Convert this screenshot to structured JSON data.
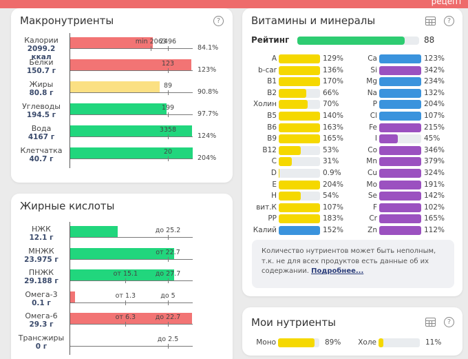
{
  "topbar": {
    "recipe_label": "рецепт",
    "color": "#ee6b6b"
  },
  "colors": {
    "red": "#f27474",
    "yellow": "#fbe083",
    "green": "#21d67d",
    "vit_yellow": "#f5d800",
    "blue": "#3a93dd",
    "purple": "#9b51c0",
    "rating_green": "#2ecc71",
    "track": "#e9ecef"
  },
  "macros": {
    "title": "Макронутриенты",
    "help_icon": "help-circle-icon",
    "rows": [
      {
        "name": "Калории",
        "value": "2099.2",
        "unit": "ккал",
        "fill_pct": 84.1,
        "color": "red",
        "ticks": [
          {
            "label": "min 2063",
            "pct": 82.7
          },
          {
            "label": "2496",
            "pct": 100
          }
        ],
        "pct_label": "84.1%"
      },
      {
        "name": "Белки",
        "value": "150.7 г",
        "fill_pct": 123,
        "color": "red",
        "ticks": [
          {
            "label": "123",
            "pct": 100
          }
        ],
        "pct_label": "123%"
      },
      {
        "name": "Жиры",
        "value": "80.8 г",
        "fill_pct": 90.8,
        "color": "yellow",
        "ticks": [
          {
            "label": "89",
            "pct": 100
          }
        ],
        "pct_label": "90.8%"
      },
      {
        "name": "Углеводы",
        "value": "194.5 г",
        "fill_pct": 97.7,
        "color": "green",
        "ticks": [
          {
            "label": "199",
            "pct": 100
          }
        ],
        "pct_label": "97.7%"
      },
      {
        "name": "Вода",
        "value": "4167 г",
        "fill_pct": 124,
        "color": "green",
        "ticks": [
          {
            "label": "3358",
            "pct": 100
          }
        ],
        "pct_label": "124%"
      },
      {
        "name": "Клетчатка",
        "value": "40.7 г",
        "fill_pct": 204,
        "color": "green",
        "ticks": [
          {
            "label": "20",
            "pct": 100
          }
        ],
        "pct_label": "204%"
      }
    ]
  },
  "fats": {
    "title": "Жирные кислоты",
    "rows": [
      {
        "name": "НЖК",
        "value": "12.1 г",
        "fill_pct": 48,
        "color": "green",
        "ticks": [
          {
            "label": "до 25.2",
            "pct": 100
          }
        ]
      },
      {
        "name": "МНЖК",
        "value": "23.975 г",
        "fill_pct": 105.6,
        "color": "green",
        "ticks": [
          {
            "label": "от 22.7",
            "pct": 100
          }
        ]
      },
      {
        "name": "ПНЖК",
        "value": "29.188 г",
        "fill_pct": 105.4,
        "color": "green",
        "ticks": [
          {
            "label": "от 15.1",
            "pct": 56.9
          },
          {
            "label": "до 27.7",
            "pct": 100
          }
        ]
      },
      {
        "name": "Омега-3",
        "value": "0.1 г",
        "fill_pct": 5,
        "color": "red",
        "ticks": [
          {
            "label": "от 1.3",
            "pct": 56.9
          },
          {
            "label": "до 5",
            "pct": 100
          }
        ]
      },
      {
        "name": "Омега-6",
        "value": "29.3 г",
        "fill_pct": 124,
        "color": "red",
        "ticks": [
          {
            "label": "от 6.3",
            "pct": 56.9
          },
          {
            "label": "до 22.7",
            "pct": 100
          }
        ]
      },
      {
        "name": "Трансжиры",
        "value": "0 г",
        "fill_pct": 0,
        "color": "green",
        "ticks": [
          {
            "label": "до 2.5",
            "pct": 100
          }
        ]
      }
    ]
  },
  "vitamins": {
    "title": "Витамины и минералы",
    "table_icon": "table-icon",
    "help_icon": "help-circle-icon",
    "rating_label": "Рейтинг",
    "rating_value": "88",
    "rating_pct": 88,
    "left": [
      {
        "name": "A",
        "pct": 129,
        "label": "129%",
        "color": "vit_yellow"
      },
      {
        "name": "b-car",
        "pct": 136,
        "label": "136%",
        "color": "vit_yellow"
      },
      {
        "name": "B1",
        "pct": 170,
        "label": "170%",
        "color": "vit_yellow"
      },
      {
        "name": "B2",
        "pct": 66,
        "label": "66%",
        "color": "vit_yellow"
      },
      {
        "name": "Холин",
        "pct": 70,
        "label": "70%",
        "color": "vit_yellow"
      },
      {
        "name": "B5",
        "pct": 140,
        "label": "140%",
        "color": "vit_yellow"
      },
      {
        "name": "B6",
        "pct": 163,
        "label": "163%",
        "color": "vit_yellow"
      },
      {
        "name": "B9",
        "pct": 165,
        "label": "165%",
        "color": "vit_yellow"
      },
      {
        "name": "B12",
        "pct": 53,
        "label": "53%",
        "color": "vit_yellow"
      },
      {
        "name": "C",
        "pct": 31,
        "label": "31%",
        "color": "vit_yellow"
      },
      {
        "name": "D",
        "pct": 0.9,
        "label": "0.9%",
        "color": "vit_yellow"
      },
      {
        "name": "E",
        "pct": 204,
        "label": "204%",
        "color": "vit_yellow"
      },
      {
        "name": "H",
        "pct": 54,
        "label": "54%",
        "color": "vit_yellow"
      },
      {
        "name": "вит.К",
        "pct": 107,
        "label": "107%",
        "color": "vit_yellow"
      },
      {
        "name": "PP",
        "pct": 183,
        "label": "183%",
        "color": "vit_yellow"
      },
      {
        "name": "Калий",
        "pct": 152,
        "label": "152%",
        "color": "blue"
      }
    ],
    "right": [
      {
        "name": "Ca",
        "pct": 123,
        "label": "123%",
        "color": "blue"
      },
      {
        "name": "Si",
        "pct": 342,
        "label": "342%",
        "color": "purple"
      },
      {
        "name": "Mg",
        "pct": 234,
        "label": "234%",
        "color": "blue"
      },
      {
        "name": "Na",
        "pct": 132,
        "label": "132%",
        "color": "blue"
      },
      {
        "name": "P",
        "pct": 204,
        "label": "204%",
        "color": "blue"
      },
      {
        "name": "Cl",
        "pct": 107,
        "label": "107%",
        "color": "blue"
      },
      {
        "name": "Fe",
        "pct": 215,
        "label": "215%",
        "color": "purple"
      },
      {
        "name": "I",
        "pct": 45,
        "label": "45%",
        "color": "purple"
      },
      {
        "name": "Co",
        "pct": 346,
        "label": "346%",
        "color": "purple"
      },
      {
        "name": "Mn",
        "pct": 379,
        "label": "379%",
        "color": "purple"
      },
      {
        "name": "Cu",
        "pct": 324,
        "label": "324%",
        "color": "purple"
      },
      {
        "name": "Mo",
        "pct": 191,
        "label": "191%",
        "color": "purple"
      },
      {
        "name": "Se",
        "pct": 142,
        "label": "142%",
        "color": "purple"
      },
      {
        "name": "F",
        "pct": 102,
        "label": "102%",
        "color": "purple"
      },
      {
        "name": "Cr",
        "pct": 165,
        "label": "165%",
        "color": "purple"
      },
      {
        "name": "Zn",
        "pct": 112,
        "label": "112%",
        "color": "purple"
      }
    ],
    "note_text": "Количество нутриентов может быть неполным, т.к. не для всех продуктов есть данные об их содержании.",
    "note_link": "Подробнее..."
  },
  "my_nutrients": {
    "title": "Мои нутриенты",
    "table_icon": "table-icon",
    "help_icon": "help-circle-icon",
    "items": [
      {
        "name": "Моно",
        "pct": 89,
        "label": "89%",
        "color": "vit_yellow"
      },
      {
        "name": "Холе",
        "pct": 11,
        "label": "11%",
        "color": "vit_yellow"
      }
    ]
  }
}
